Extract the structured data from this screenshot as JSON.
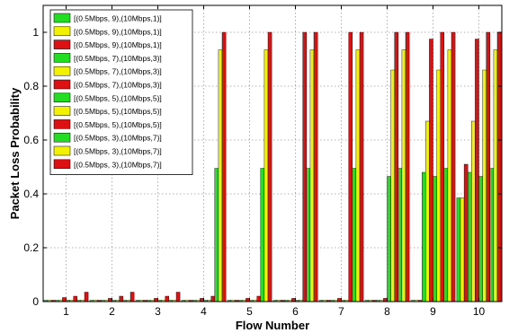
{
  "chart_data": {
    "type": "bar",
    "xlabel": "Flow Number",
    "ylabel": "Packet Loss Probability",
    "ylim": [
      0,
      1.1
    ],
    "yticks": [
      0,
      0.2,
      0.4,
      0.6,
      0.8,
      1
    ],
    "ytick_labels": [
      "0",
      "0.2",
      "0.4",
      "0.6",
      "0.8",
      "1"
    ],
    "categories": [
      "1",
      "2",
      "3",
      "4",
      "5",
      "6",
      "7",
      "8",
      "9",
      "10"
    ],
    "grid": true,
    "legend_position": "top-left",
    "series": [
      {
        "name": "[(0.5Mbps, 9),(10Mbps,1)]",
        "color": "#22dd22",
        "values": [
          0.005,
          0.005,
          0.005,
          0.005,
          0.005,
          0.005,
          0.005,
          0.005,
          0.005,
          0.385
        ]
      },
      {
        "name": "[(0.5Mbps, 9),(10Mbps,1)]",
        "color": "#f2f200",
        "values": [
          0.005,
          0.005,
          0.005,
          0.005,
          0.005,
          0.005,
          0.005,
          0.005,
          0.005,
          0.385
        ]
      },
      {
        "name": "[(0.5Mbps, 9),(10Mbps,1)]",
        "color": "#dd1111",
        "values": [
          0.005,
          0.005,
          0.005,
          0.005,
          0.005,
          0.005,
          0.005,
          0.005,
          0.005,
          0.51
        ]
      },
      {
        "name": "[(0.5Mbps, 7),(10Mbps,3)]",
        "color": "#22dd22",
        "values": [
          0.005,
          0.005,
          0.005,
          0.005,
          0.005,
          0.005,
          0.005,
          0.005,
          0.48,
          0.48
        ]
      },
      {
        "name": "[(0.5Mbps, 7),(10Mbps,3)]",
        "color": "#f2f200",
        "values": [
          0.005,
          0.005,
          0.005,
          0.005,
          0.005,
          0.005,
          0.005,
          0.005,
          0.67,
          0.67
        ]
      },
      {
        "name": "[(0.5Mbps, 7),(10Mbps,3)]",
        "color": "#dd1111",
        "values": [
          0.015,
          0.012,
          0.012,
          0.012,
          0.012,
          0.012,
          0.012,
          0.012,
          0.975,
          0.975
        ]
      },
      {
        "name": "[(0.5Mbps, 5),(10Mbps,5)]",
        "color": "#22dd22",
        "values": [
          0.005,
          0.005,
          0.005,
          0.005,
          0.005,
          0.005,
          0.005,
          0.465,
          0.465,
          0.465
        ]
      },
      {
        "name": "[(0.5Mbps, 5),(10Mbps,5)]",
        "color": "#f2f200",
        "values": [
          0.005,
          0.005,
          0.005,
          0.005,
          0.005,
          0.005,
          0.005,
          0.86,
          0.86,
          0.86
        ]
      },
      {
        "name": "[(0.5Mbps, 5),(10Mbps,5)]",
        "color": "#dd1111",
        "values": [
          0.02,
          0.02,
          0.02,
          0.02,
          0.02,
          1.0,
          1.0,
          1.0,
          1.0,
          1.0
        ]
      },
      {
        "name": "[(0.5Mbps, 3),(10Mbps,7)]",
        "color": "#22dd22",
        "values": [
          0.005,
          0.005,
          0.005,
          0.495,
          0.495,
          0.495,
          0.495,
          0.495,
          0.495,
          0.495
        ]
      },
      {
        "name": "[(0.5Mbps, 3),(10Mbps,7)]",
        "color": "#f2f200",
        "values": [
          0.005,
          0.005,
          0.005,
          0.935,
          0.935,
          0.935,
          0.935,
          0.935,
          0.935,
          0.935
        ]
      },
      {
        "name": "[(0.5Mbps, 3),(10Mbps,7)]",
        "color": "#dd1111",
        "values": [
          0.035,
          0.035,
          0.035,
          1.0,
          1.0,
          1.0,
          1.0,
          1.0,
          1.0,
          1.0
        ]
      }
    ]
  }
}
